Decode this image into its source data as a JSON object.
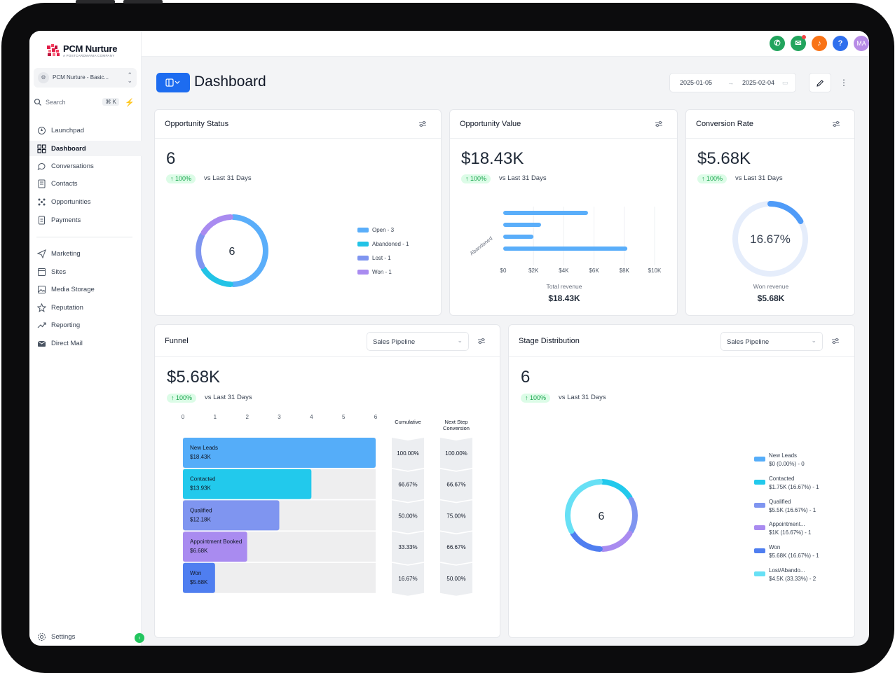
{
  "brand": {
    "name": "PCM Nurture",
    "tagline": "A POSTCARDMANIA COMPANY"
  },
  "account": {
    "name": "PCM Nurture - Basic..."
  },
  "search": {
    "label": "Search",
    "shortcut": "⌘ K"
  },
  "nav": [
    {
      "label": "Launchpad",
      "icon": "rocket-icon"
    },
    {
      "label": "Dashboard",
      "icon": "grid-icon",
      "active": true
    },
    {
      "label": "Conversations",
      "icon": "chat-icon"
    },
    {
      "label": "Contacts",
      "icon": "contacts-icon"
    },
    {
      "label": "Opportunities",
      "icon": "opportunities-icon"
    },
    {
      "label": "Payments",
      "icon": "payments-icon"
    },
    {
      "label": "Marketing",
      "icon": "send-icon"
    },
    {
      "label": "Sites",
      "icon": "sites-icon"
    },
    {
      "label": "Media Storage",
      "icon": "image-icon"
    },
    {
      "label": "Reputation",
      "icon": "star-icon"
    },
    {
      "label": "Reporting",
      "icon": "trend-icon"
    },
    {
      "label": "Direct Mail",
      "icon": "mail-icon"
    }
  ],
  "settings": {
    "label": "Settings"
  },
  "topbar": {
    "avatar_initials": "MA",
    "colors": {
      "phone": "#22a45d",
      "megaphone": "#22a45d",
      "bell": "#f97316",
      "help": "#2f6fed",
      "avatar": "#b78be6"
    }
  },
  "header": {
    "title": "Dashboard",
    "date_start": "2025-01-05",
    "date_end": "2025-02-04"
  },
  "common": {
    "delta": "100%",
    "vs_label": "vs Last 31 Days"
  },
  "opportunity_status": {
    "title": "Opportunity Status",
    "value": "6",
    "center": "6",
    "legend": [
      {
        "label": "Open - 3",
        "color": "#5aaefa"
      },
      {
        "label": "Abandoned - 1",
        "color": "#22c3e6"
      },
      {
        "label": "Lost - 1",
        "color": "#7f95f0"
      },
      {
        "label": "Won - 1",
        "color": "#a98bf0"
      }
    ]
  },
  "opportunity_value": {
    "title": "Opportunity Value",
    "value": "$18.43K",
    "category_label": "Abandoned",
    "x_ticks": [
      "$0",
      "$2K",
      "$4K",
      "$6K",
      "$8K",
      "$10K"
    ],
    "footer_label": "Total revenue",
    "footer_value": "$18.43K"
  },
  "conversion_rate": {
    "title": "Conversion Rate",
    "value": "$5.68K",
    "gauge_label": "16.67%",
    "footer_label": "Won revenue",
    "footer_value": "$5.68K"
  },
  "funnel": {
    "title": "Funnel",
    "select": "Sales Pipeline",
    "value": "$5.68K",
    "x_ticks": [
      "0",
      "1",
      "2",
      "3",
      "4",
      "5",
      "6"
    ],
    "col_cumulative": "Cumulative",
    "col_next_line1": "Next Step",
    "col_next_line2": "Conversion",
    "stages": [
      {
        "name": "New Leads",
        "amount": "$18.43K",
        "count": 6,
        "cumulative": "100.00%",
        "next": "100.00%",
        "color": "#55adf9"
      },
      {
        "name": "Contacted",
        "amount": "$13.93K",
        "count": 4,
        "cumulative": "66.67%",
        "next": "66.67%",
        "color": "#22c9ec"
      },
      {
        "name": "Qualified",
        "amount": "$12.18K",
        "count": 3,
        "cumulative": "50.00%",
        "next": "75.00%",
        "color": "#7f95f0"
      },
      {
        "name": "Appointment Booked",
        "amount": "$6.68K",
        "count": 2,
        "cumulative": "33.33%",
        "next": "66.67%",
        "color": "#a98bf0"
      },
      {
        "name": "Won",
        "amount": "$5.68K",
        "count": 1,
        "cumulative": "16.67%",
        "next": "50.00%",
        "color": "#4f7ef0"
      }
    ]
  },
  "stage_distribution": {
    "title": "Stage Distribution",
    "select": "Sales Pipeline",
    "value": "6",
    "center": "6",
    "legend": [
      {
        "line1": "New Leads",
        "line2": "$0 (0.00%) - 0",
        "color": "#55adf9"
      },
      {
        "line1": "Contacted",
        "line2": "$1.75K (16.67%) - 1",
        "color": "#22c9ec"
      },
      {
        "line1": "Qualified",
        "line2": "$5.5K (16.67%) - 1",
        "color": "#7f95f0"
      },
      {
        "line1": "Appointment...",
        "line2": "$1K (16.67%) - 1",
        "color": "#a98bf0"
      },
      {
        "line1": "Won",
        "line2": "$5.68K (16.67%) - 1",
        "color": "#4f7ef0"
      },
      {
        "line1": "Lost/Abando...",
        "line2": "$4.5K (33.33%) - 2",
        "color": "#67e0f5"
      }
    ]
  },
  "chart_data": [
    {
      "type": "pie",
      "categories": [
        "Open",
        "Abandoned",
        "Lost",
        "Won"
      ],
      "values": [
        3,
        1,
        1,
        1
      ]
    },
    {
      "type": "bar",
      "orientation": "horizontal",
      "categories": [
        "Abandoned"
      ],
      "series_values": [
        5600,
        2500,
        2000,
        8200
      ],
      "xlim": [
        0,
        10000
      ]
    },
    {
      "type": "pie",
      "categories": [
        "Won"
      ],
      "values": [
        16.67
      ]
    },
    {
      "type": "bar",
      "orientation": "horizontal",
      "categories": [
        "New Leads",
        "Contacted",
        "Qualified",
        "Appointment Booked",
        "Won"
      ],
      "values": [
        6,
        4,
        3,
        2,
        1
      ],
      "xlim": [
        0,
        6
      ]
    },
    {
      "type": "pie",
      "categories": [
        "New Leads",
        "Contacted",
        "Qualified",
        "Appointment...",
        "Won",
        "Lost/Abando..."
      ],
      "values": [
        0,
        1,
        1,
        1,
        1,
        2
      ]
    }
  ]
}
